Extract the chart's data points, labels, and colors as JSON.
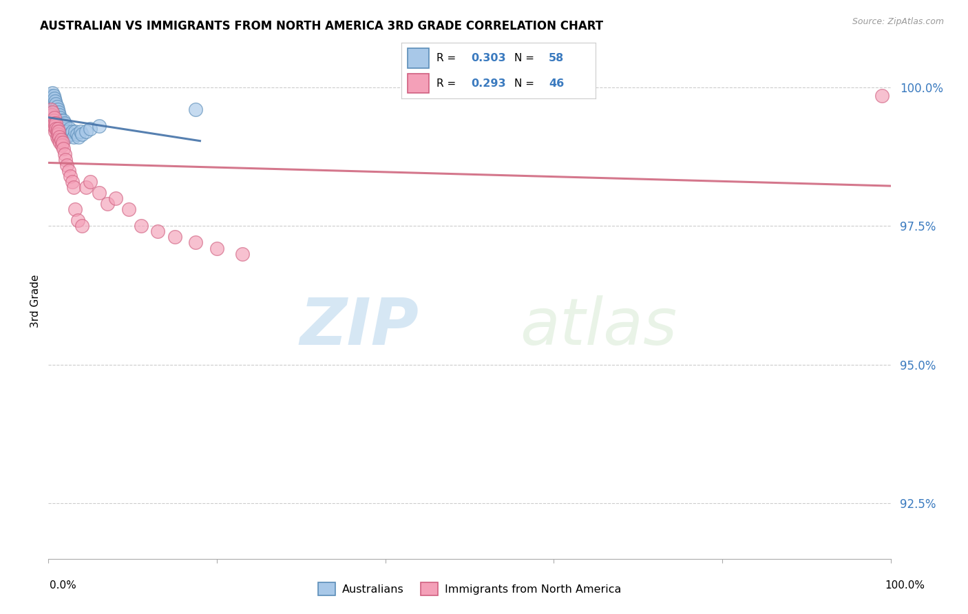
{
  "title": "AUSTRALIAN VS IMMIGRANTS FROM NORTH AMERICA 3RD GRADE CORRELATION CHART",
  "source": "Source: ZipAtlas.com",
  "ylabel": "3rd Grade",
  "y_ticks": [
    92.5,
    95.0,
    97.5,
    100.0
  ],
  "y_tick_labels": [
    "92.5%",
    "95.0%",
    "97.5%",
    "100.0%"
  ],
  "xlim": [
    0.0,
    1.0
  ],
  "ylim": [
    91.5,
    100.8
  ],
  "R_australian": 0.303,
  "N_australian": 58,
  "R_immigrants": 0.293,
  "N_immigrants": 46,
  "color_australian": "#a8c8e8",
  "color_immigrants": "#f4a0b8",
  "edge_color_australian": "#5b8db8",
  "edge_color_immigrants": "#d06080",
  "line_color_australian": "#4472a8",
  "line_color_immigrants": "#d06880",
  "watermark_zip": "ZIP",
  "watermark_atlas": "atlas",
  "legend_label_australian": "Australians",
  "legend_label_immigrants": "Immigrants from North America",
  "aus_x": [
    0.003,
    0.004,
    0.005,
    0.005,
    0.006,
    0.006,
    0.006,
    0.007,
    0.007,
    0.007,
    0.008,
    0.008,
    0.008,
    0.008,
    0.009,
    0.009,
    0.009,
    0.01,
    0.01,
    0.01,
    0.01,
    0.011,
    0.011,
    0.011,
    0.012,
    0.012,
    0.012,
    0.013,
    0.013,
    0.014,
    0.014,
    0.015,
    0.015,
    0.016,
    0.016,
    0.017,
    0.018,
    0.018,
    0.019,
    0.02,
    0.02,
    0.021,
    0.022,
    0.023,
    0.024,
    0.025,
    0.026,
    0.028,
    0.03,
    0.032,
    0.034,
    0.036,
    0.038,
    0.04,
    0.045,
    0.05,
    0.06,
    0.175
  ],
  "aus_y": [
    99.85,
    99.8,
    99.9,
    99.75,
    99.85,
    99.7,
    99.6,
    99.8,
    99.65,
    99.55,
    99.75,
    99.6,
    99.5,
    99.4,
    99.7,
    99.55,
    99.45,
    99.65,
    99.5,
    99.4,
    99.3,
    99.6,
    99.45,
    99.35,
    99.55,
    99.4,
    99.3,
    99.5,
    99.35,
    99.45,
    99.3,
    99.4,
    99.25,
    99.35,
    99.2,
    99.3,
    99.4,
    99.25,
    99.35,
    99.2,
    99.1,
    99.2,
    99.1,
    99.2,
    99.15,
    99.25,
    99.15,
    99.2,
    99.1,
    99.2,
    99.15,
    99.1,
    99.2,
    99.15,
    99.2,
    99.25,
    99.3,
    99.6
  ],
  "imm_x": [
    0.003,
    0.004,
    0.005,
    0.006,
    0.006,
    0.007,
    0.007,
    0.008,
    0.008,
    0.009,
    0.009,
    0.01,
    0.01,
    0.011,
    0.011,
    0.012,
    0.012,
    0.013,
    0.014,
    0.015,
    0.016,
    0.017,
    0.018,
    0.019,
    0.02,
    0.022,
    0.024,
    0.026,
    0.028,
    0.03,
    0.032,
    0.035,
    0.04,
    0.045,
    0.05,
    0.06,
    0.07,
    0.08,
    0.095,
    0.11,
    0.13,
    0.15,
    0.175,
    0.2,
    0.23,
    0.99
  ],
  "imm_y": [
    99.6,
    99.5,
    99.55,
    99.4,
    99.3,
    99.45,
    99.35,
    99.3,
    99.2,
    99.35,
    99.25,
    99.2,
    99.1,
    99.25,
    99.15,
    99.2,
    99.05,
    99.1,
    99.0,
    99.05,
    98.95,
    99.0,
    98.9,
    98.8,
    98.7,
    98.6,
    98.5,
    98.4,
    98.3,
    98.2,
    97.8,
    97.6,
    97.5,
    98.2,
    98.3,
    98.1,
    97.9,
    98.0,
    97.8,
    97.5,
    97.4,
    97.3,
    97.2,
    97.1,
    97.0,
    99.85
  ]
}
